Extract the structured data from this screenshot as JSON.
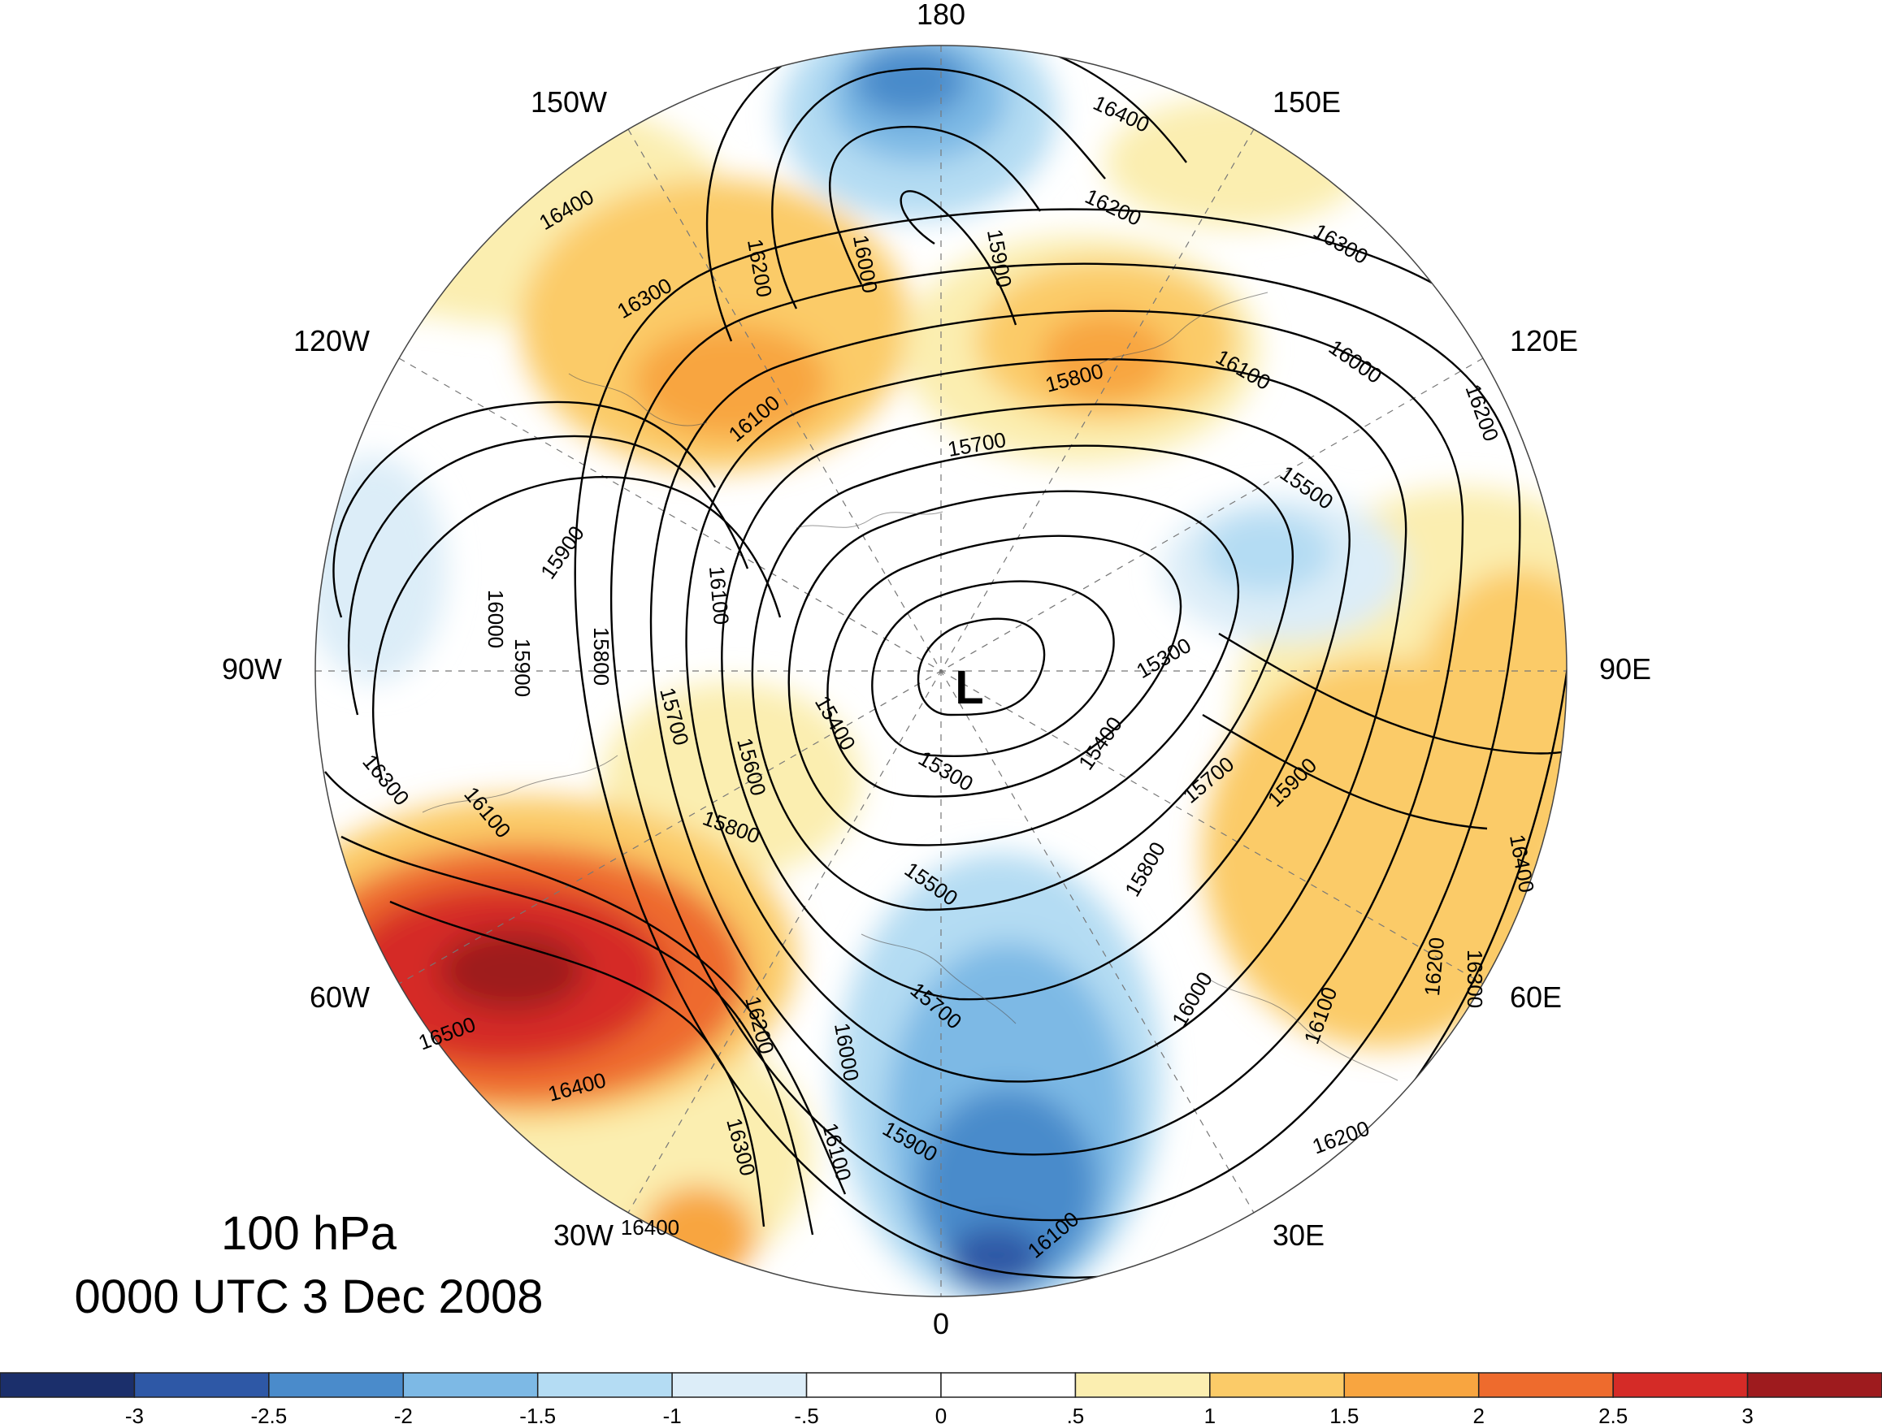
{
  "map": {
    "level_label": "100 hPa",
    "time_label": "0000 UTC 3 Dec 2008",
    "low_center_label": "L",
    "longitude_labels": [
      "180",
      "150E",
      "120E",
      "90E",
      "60E",
      "30E",
      "0",
      "30W",
      "60W",
      "90W",
      "120W",
      "150W"
    ],
    "contour_labels": [
      "16400",
      "16300",
      "16000",
      "16200",
      "15900",
      "16100",
      "16400",
      "16300",
      "16200",
      "16100",
      "15800",
      "15700",
      "16000",
      "15500",
      "16200",
      "15900",
      "16100",
      "16000",
      "15900",
      "15800",
      "15700",
      "15600",
      "15400",
      "15300",
      "15300",
      "15400",
      "15700",
      "15900",
      "15800",
      "16000",
      "16100",
      "16200",
      "16300",
      "16400",
      "16300",
      "16100",
      "15800",
      "15500",
      "15700",
      "16200",
      "16500",
      "16400",
      "16300",
      "16000",
      "16100",
      "15900",
      "16100",
      "16400",
      "16200"
    ]
  },
  "colorbar": {
    "tick_labels": [
      "-3",
      "-2.5",
      "-2",
      "-1.5",
      "-1",
      "-.5",
      "0",
      ".5",
      "1",
      "1.5",
      "2",
      "2.5",
      "3"
    ],
    "colors": [
      "#1b2f6b",
      "#2e58a6",
      "#4a8bcb",
      "#7db9e5",
      "#b4dcf3",
      "#dcedf8",
      "#ffffff",
      "#ffffff",
      "#fbeeb0",
      "#fbcb68",
      "#f8a540",
      "#ee6b2d",
      "#d52b27",
      "#9e1b1e"
    ]
  }
}
